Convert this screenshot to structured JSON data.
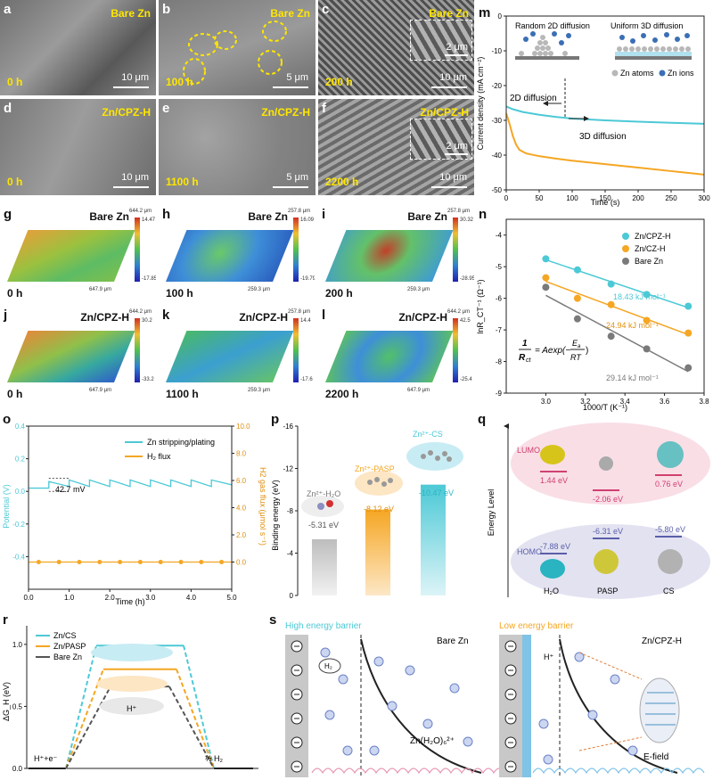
{
  "panels": {
    "a": {
      "tag": "a",
      "label": "Bare Zn",
      "time": "0 h",
      "scale": "10 μm"
    },
    "b": {
      "tag": "b",
      "label": "Bare Zn",
      "time": "100 h",
      "scale": "5 μm"
    },
    "c": {
      "tag": "c",
      "label": "Bare Zn",
      "time": "200 h",
      "scale": "10 μm",
      "inset_scale": "2 μm"
    },
    "d": {
      "tag": "d",
      "label": "Zn/CPZ-H",
      "time": "0 h",
      "scale": "10 μm"
    },
    "e": {
      "tag": "e",
      "label": "Zn/CPZ-H",
      "time": "1100 h",
      "scale": "5 μm"
    },
    "f": {
      "tag": "f",
      "label": "Zn/CPZ-H",
      "time": "2200 h",
      "scale": "10 μm",
      "inset_scale": "2 μm"
    },
    "g": {
      "tag": "g",
      "label": "Bare Zn",
      "time": "0 h",
      "top": "644.2 μm",
      "side": "647.9 μm",
      "cmax": "14.47",
      "cmin": "-17.85"
    },
    "h": {
      "tag": "h",
      "label": "Bare Zn",
      "time": "100 h",
      "top": "257.8 μm",
      "side": "259.3 μm",
      "cmax": "16.09",
      "cmin": "-19.79"
    },
    "i": {
      "tag": "i",
      "label": "Bare Zn",
      "time": "200 h",
      "top": "257.8 μm",
      "side": "259.3 μm",
      "cmax": "30.32",
      "cmin": "-28.95"
    },
    "j": {
      "tag": "j",
      "label": "Zn/CPZ-H",
      "time": "0 h",
      "top": "644.2 μm",
      "side": "647.9 μm",
      "cmax": "30.2",
      "cmin": "-33.2"
    },
    "k": {
      "tag": "k",
      "label": "Zn/CPZ-H",
      "time": "1100 h",
      "top": "257.8 μm",
      "side": "259.3 μm",
      "cmax": "14.4",
      "cmin": "-17.6"
    },
    "l": {
      "tag": "l",
      "label": "Zn/CPZ-H",
      "time": "2200 h",
      "top": "644.2 μm",
      "side": "647.9 μm",
      "cmax": "42.5",
      "cmin": "-25.4"
    }
  },
  "tags": {
    "m": "m",
    "n": "n",
    "o": "o",
    "p": "p",
    "q": "q",
    "r": "r",
    "s": "s"
  },
  "m": {
    "ylabel": "Current density (mA cm⁻²)",
    "xlabel": "Time (s)",
    "title_left": "Random 2D diffusion",
    "title_right": "Uniform 3D diffusion",
    "legend_atoms": "Zn atoms",
    "legend_ions": "Zn ions",
    "ann1": "2D diffusion",
    "ann2": "3D diffusion"
  },
  "n": {
    "ylabel": "lnR_CT⁻¹ (Ω⁻¹)",
    "xlabel": "1000/T (K⁻¹)",
    "legend": [
      "Zn/CPZ-H",
      "Zn/CZ-H",
      "Bare Zn"
    ],
    "ea": [
      "18.43 kJ mol⁻¹",
      "24.94 kJ mol⁻¹",
      "29.14 kJ mol⁻¹"
    ]
  },
  "o": {
    "ylabel_left": "Potential (V)",
    "ylabel_right": "H2 gas flux (μmol s⁻¹)",
    "xlabel": "Time (h)",
    "legend": [
      "Zn stripping/plating",
      "H₂ flux"
    ],
    "ann": "42.7 mV"
  },
  "p": {
    "ylabel": "Binding energy (eV)",
    "labels": [
      "Zn²⁺-H₂O",
      "Zn²⁺-PASP",
      "Zn²⁺-CS"
    ],
    "value_labels": [
      "-5.31 eV",
      "-8.12 eV",
      "-10.47 eV"
    ]
  },
  "q": {
    "ylabel": "Energy Level",
    "lumo": "LUMO",
    "homo": "HOMO",
    "lumo_vals": [
      "1.44 eV",
      "-2.06 eV",
      "0.76 eV"
    ],
    "homo_vals": [
      "-7.88 eV",
      "-6.31 eV",
      "-5.80 eV"
    ],
    "mols": [
      "H₂O",
      "PASP",
      "CS"
    ]
  },
  "r": {
    "ylabel": "ΔG_H (eV)",
    "legend": [
      "Zn/CS",
      "Zn/PASP",
      "Bare Zn"
    ],
    "left": "H⁺+e⁻",
    "right": "½ H₂",
    "mid": "H⁺"
  },
  "s": {
    "left_title": "High energy barrier",
    "right_title": "Low energy barrier",
    "left_sub": "Bare Zn",
    "right_sub": "Zn/CPZ-H",
    "ion": "Zn(H₂O)₆²⁺",
    "efield": "E-field",
    "h2": "H₂",
    "hplus": "H⁺"
  },
  "chart_data": [
    {
      "type": "line",
      "panel": "m",
      "xlabel": "Time (s)",
      "ylabel": "Current density (mA cm⁻²)",
      "xlim": [
        0,
        300
      ],
      "ylim": [
        -50,
        0
      ],
      "series": [
        {
          "name": "",
          "color": "#4cc9d6",
          "x": [
            0,
            10,
            25,
            50,
            75,
            100,
            150,
            200,
            250,
            300
          ],
          "y": [
            -26,
            -26.8,
            -27.6,
            -28.4,
            -29,
            -29.5,
            -30,
            -30.4,
            -30.7,
            -31
          ]
        },
        {
          "name": "",
          "color": "#f5a623",
          "x": [
            0,
            5,
            10,
            15,
            20,
            30,
            50,
            75,
            100,
            150,
            200,
            250,
            300
          ],
          "y": [
            -28,
            -31,
            -34.5,
            -37,
            -38.5,
            -39.5,
            -40.3,
            -41,
            -41.6,
            -42.6,
            -43.6,
            -44.6,
            -45.6
          ]
        }
      ]
    },
    {
      "type": "scatter",
      "panel": "n",
      "xlabel": "1000/T (K⁻¹)",
      "ylabel": "lnR_CT⁻¹ (Ω⁻¹)",
      "xlim": [
        2.8,
        3.8
      ],
      "ylim": [
        -9,
        -3.5
      ],
      "series": [
        {
          "name": "Zn/CPZ-H",
          "color": "#4cc9d6",
          "x": [
            3.0,
            3.16,
            3.33,
            3.51,
            3.72
          ],
          "y": [
            -4.75,
            -5.1,
            -5.55,
            -5.88,
            -6.25
          ]
        },
        {
          "name": "Zn/CZ-H",
          "color": "#f5a623",
          "x": [
            3.0,
            3.16,
            3.33,
            3.51,
            3.72
          ],
          "y": [
            -5.35,
            -6.0,
            -6.2,
            -6.7,
            -7.1
          ]
        },
        {
          "name": "Bare Zn",
          "color": "#7a7a7a",
          "x": [
            3.0,
            3.16,
            3.33,
            3.51,
            3.72
          ],
          "y": [
            -5.65,
            -6.65,
            -7.2,
            -7.6,
            -8.2
          ]
        }
      ]
    },
    {
      "type": "line",
      "panel": "o",
      "xlabel": "Time (h)",
      "xlim": [
        0,
        5
      ],
      "ylim_left": [
        -0.6,
        0.4
      ],
      "ylim_right": [
        -2,
        10
      ],
      "series": [
        {
          "name": "Zn stripping/plating",
          "color": "#4cc9d6",
          "axis": "left",
          "x": [
            0,
            0.5,
            0.5,
            1.0,
            1.0,
            1.5,
            1.5,
            2.0,
            2.0,
            2.5,
            2.5,
            3.0,
            3.0,
            3.5,
            3.5,
            4.0,
            4.0,
            4.5,
            4.5,
            5.0
          ],
          "y": [
            0.02,
            0.02,
            0.06,
            0.03,
            0.07,
            0.03,
            0.07,
            0.03,
            0.07,
            0.03,
            0.07,
            0.03,
            0.07,
            0.03,
            0.07,
            0.03,
            0.07,
            0.03,
            0.07,
            0.04
          ]
        },
        {
          "name": "H₂ flux",
          "color": "#f5a623",
          "axis": "right",
          "x": [
            0,
            0.25,
            0.75,
            1.25,
            1.75,
            2.25,
            2.75,
            3.25,
            3.75,
            4.25,
            4.75,
            5.0
          ],
          "y": [
            0,
            0,
            0,
            0,
            0,
            0,
            0,
            0,
            0,
            0,
            0,
            0
          ]
        }
      ]
    },
    {
      "type": "bar",
      "panel": "p",
      "ylabel": "Binding energy (eV)",
      "ylim": [
        0,
        -16
      ],
      "categories": [
        "Zn²⁺-H₂O",
        "Zn²⁺-PASP",
        "Zn²⁺-CS"
      ],
      "values": [
        -5.31,
        -8.12,
        -10.47
      ]
    },
    {
      "type": "line",
      "panel": "r",
      "ylabel": "ΔG_H (eV)",
      "ylim": [
        0,
        1.15
      ],
      "series": [
        {
          "name": "Zn/CS",
          "color": "#4cc9d6",
          "level": 0.99
        },
        {
          "name": "Zn/PASP",
          "color": "#f5a623",
          "level": 0.8
        },
        {
          "name": "Bare Zn",
          "color": "#555555",
          "level": 0.66
        }
      ]
    }
  ]
}
